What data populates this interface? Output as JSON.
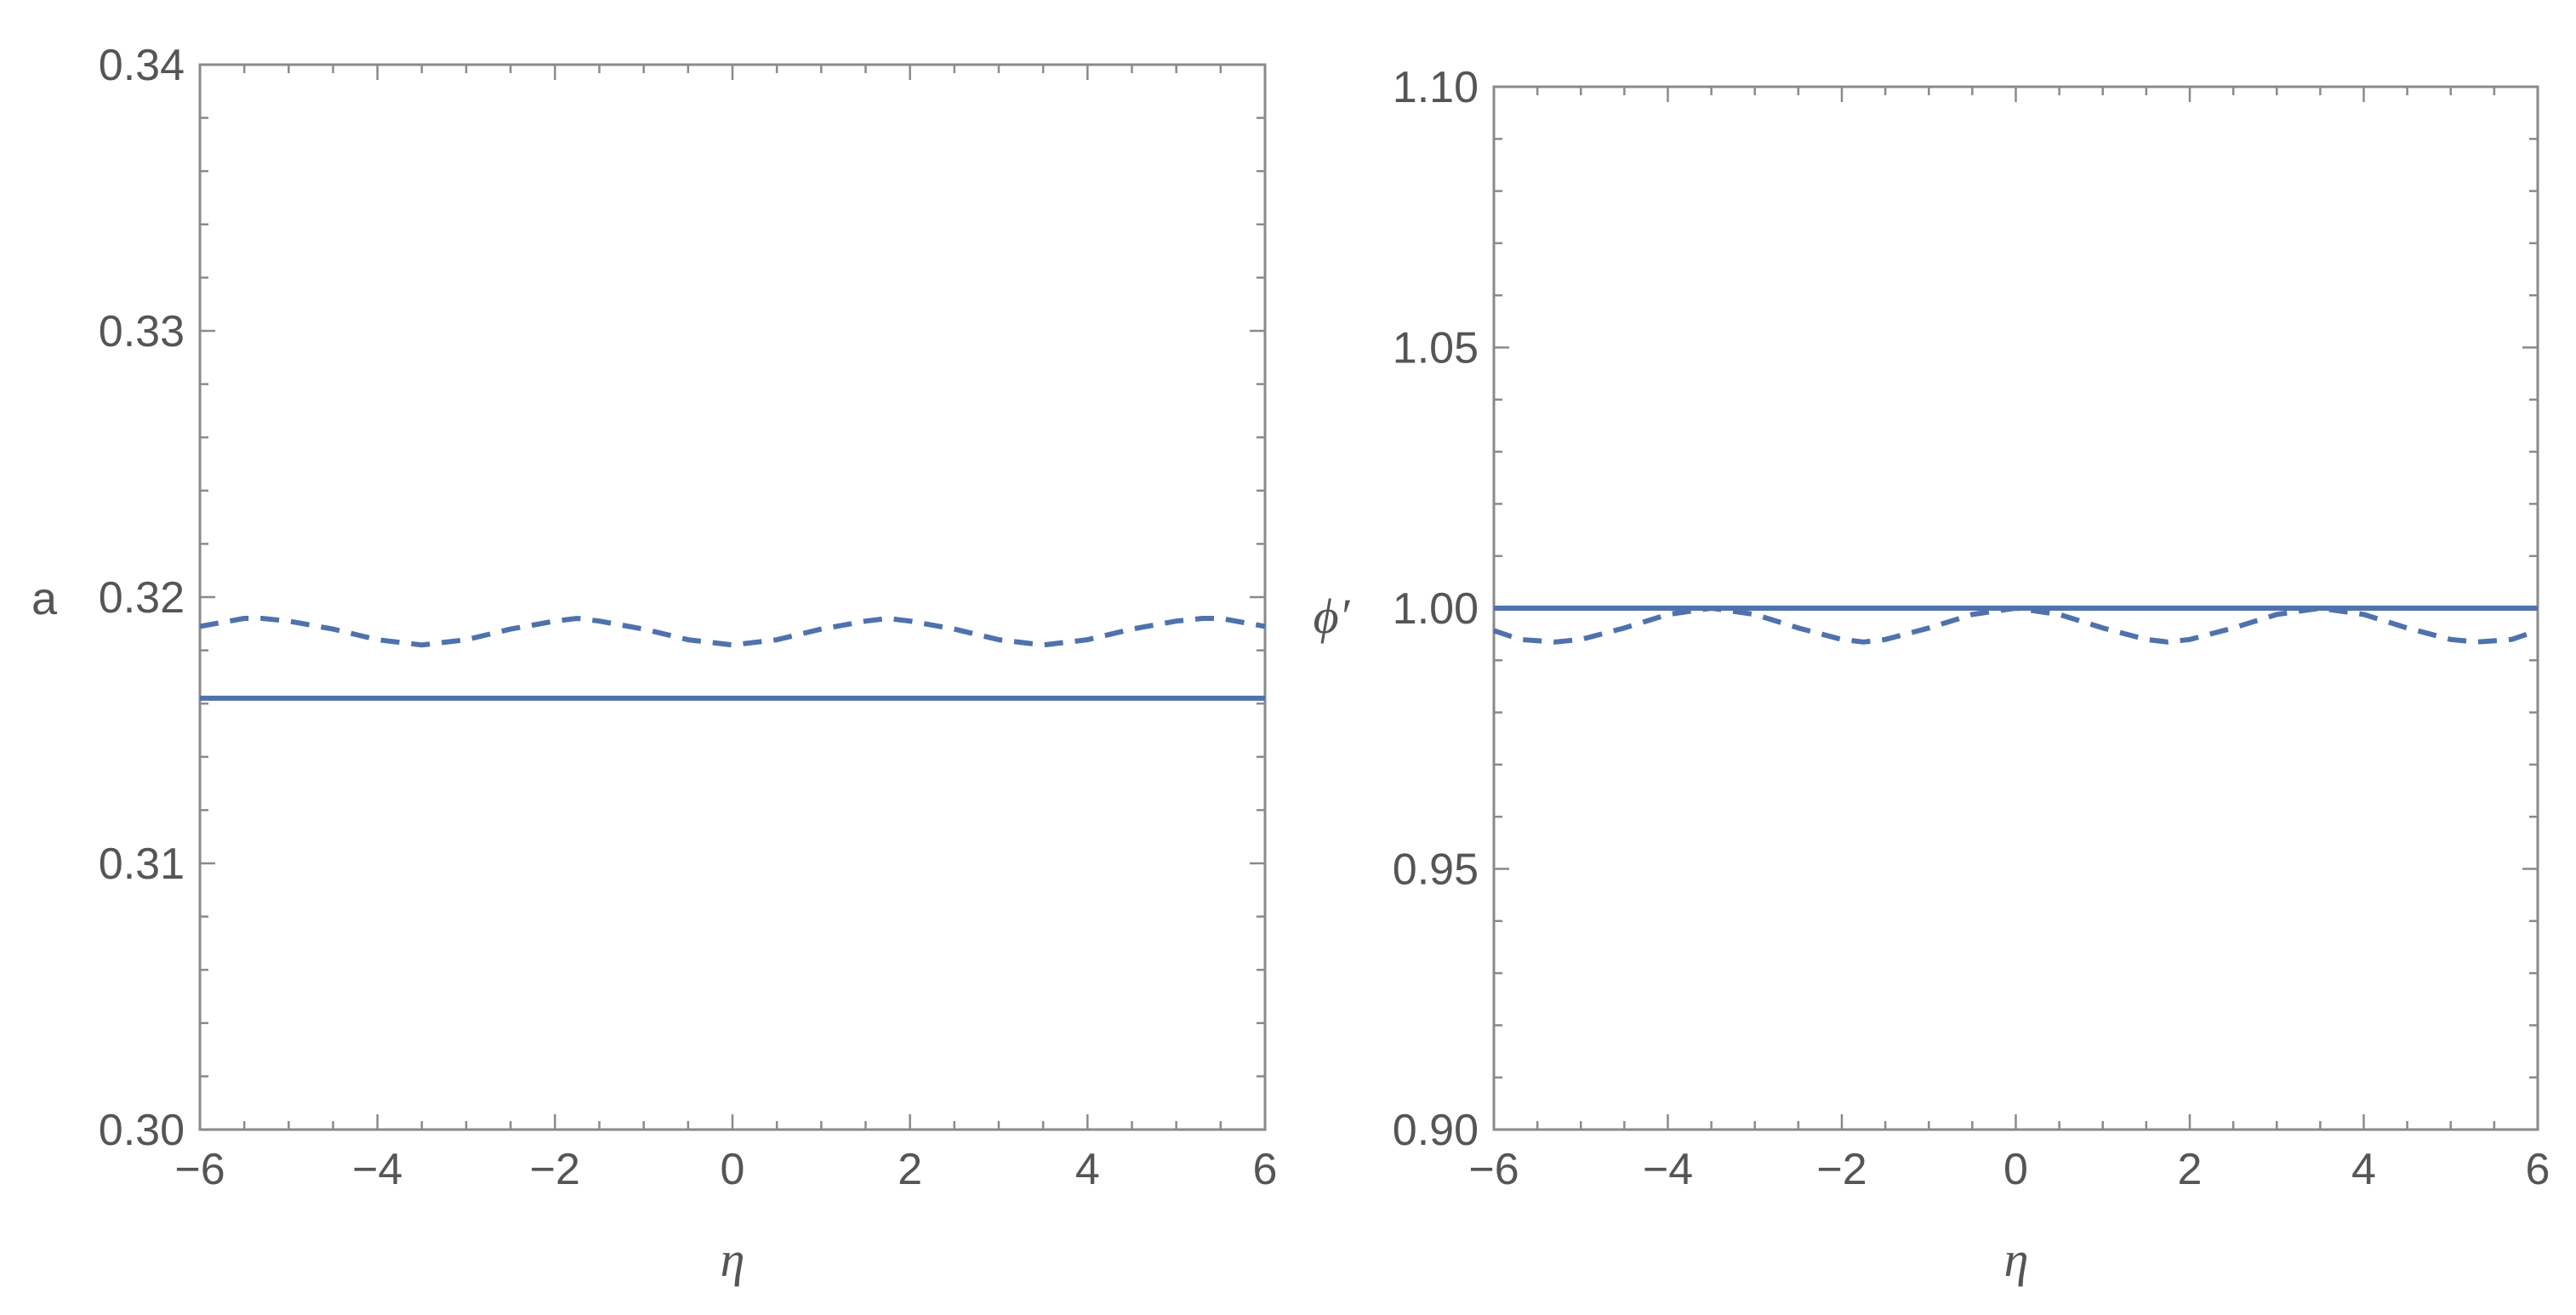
{
  "chart_data": [
    {
      "type": "line",
      "xlabel": "η",
      "ylabel": "a",
      "xlim": [
        -6,
        6
      ],
      "ylim": [
        0.3,
        0.34
      ],
      "xticks": [
        -6,
        -4,
        -2,
        0,
        2,
        4,
        6
      ],
      "xtick_labels": [
        "−6",
        "−4",
        "−2",
        "0",
        "2",
        "4",
        "6"
      ],
      "yticks": [
        0.3,
        0.31,
        0.32,
        0.33,
        0.34
      ],
      "ytick_labels": [
        "0.30",
        "0.31",
        "0.32",
        "0.33",
        "0.34"
      ],
      "grid": false,
      "series": [
        {
          "style": "solid",
          "x": [
            -6,
            6
          ],
          "y": [
            0.3162,
            0.3162
          ]
        },
        {
          "style": "dashed",
          "x": [
            -6.0,
            -5.5,
            -5.3,
            -5.0,
            -4.5,
            -4.0,
            -3.5,
            -3.0,
            -2.5,
            -2.0,
            -1.75,
            -1.5,
            -1.0,
            -0.5,
            0.0,
            0.5,
            1.0,
            1.5,
            1.75,
            2.0,
            2.5,
            3.0,
            3.5,
            4.0,
            4.5,
            5.0,
            5.3,
            5.5,
            6.0
          ],
          "y": [
            0.3189,
            0.3192,
            0.3192,
            0.3191,
            0.3188,
            0.3184,
            0.3182,
            0.3184,
            0.3188,
            0.3191,
            0.3192,
            0.3191,
            0.3188,
            0.3184,
            0.3182,
            0.3184,
            0.3188,
            0.3191,
            0.3192,
            0.3191,
            0.3188,
            0.3184,
            0.3182,
            0.3184,
            0.3188,
            0.3191,
            0.3192,
            0.3192,
            0.3189
          ]
        }
      ]
    },
    {
      "type": "line",
      "xlabel": "η",
      "ylabel": "ϕ′",
      "xlim": [
        -6,
        6
      ],
      "ylim": [
        0.9,
        1.1
      ],
      "xticks": [
        -6,
        -4,
        -2,
        0,
        2,
        4,
        6
      ],
      "xtick_labels": [
        "−6",
        "−4",
        "−2",
        "0",
        "2",
        "4",
        "6"
      ],
      "yticks": [
        0.9,
        0.95,
        1.0,
        1.05,
        1.1
      ],
      "ytick_labels": [
        "0.90",
        "0.95",
        "1.00",
        "1.05",
        "1.10"
      ],
      "grid": false,
      "series": [
        {
          "style": "solid",
          "x": [
            -6,
            6
          ],
          "y": [
            1.0,
            1.0
          ]
        },
        {
          "style": "dashed",
          "x": [
            -6.0,
            -5.7,
            -5.3,
            -5.0,
            -4.5,
            -4.0,
            -3.5,
            -3.0,
            -2.5,
            -2.0,
            -1.75,
            -1.5,
            -1.0,
            -0.5,
            0.0,
            0.5,
            1.0,
            1.5,
            1.75,
            2.0,
            2.5,
            3.0,
            3.5,
            4.0,
            4.5,
            5.0,
            5.3,
            5.7,
            6.0
          ],
          "y": [
            0.9957,
            0.994,
            0.9935,
            0.994,
            0.9962,
            0.9988,
            1.0,
            0.9988,
            0.9962,
            0.994,
            0.9935,
            0.994,
            0.9962,
            0.9988,
            1.0,
            0.9988,
            0.9962,
            0.994,
            0.9935,
            0.994,
            0.9962,
            0.9988,
            1.0,
            0.9988,
            0.9962,
            0.994,
            0.9935,
            0.994,
            0.9957
          ]
        }
      ]
    }
  ],
  "colors": {
    "series": "#4f72ad",
    "frame": "#8a8a8a",
    "text": "#555555"
  }
}
